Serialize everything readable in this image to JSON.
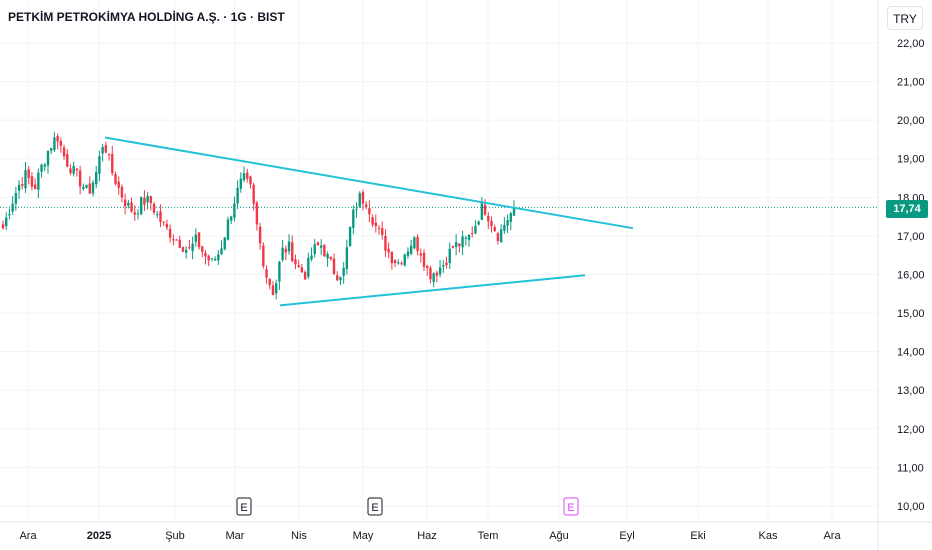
{
  "header": {
    "title": "PETKİM PETROKİMYA HOLDİNG A.Ş. · 1G · BIST",
    "currency": "TRY"
  },
  "price_tag": "17,74",
  "chart_data": {
    "type": "candlestick",
    "y_ticks": [
      "22,00",
      "21,00",
      "20,00",
      "19,00",
      "18,00",
      "17,00",
      "16,00",
      "15,00",
      "14,00",
      "13,00",
      "12,00",
      "11,00",
      "10,00"
    ],
    "y_tick_values": [
      22,
      21,
      20,
      19,
      18,
      17,
      16,
      15,
      14,
      13,
      12,
      11,
      10
    ],
    "x_ticks": [
      {
        "label": "Ara",
        "bold": false
      },
      {
        "label": "2025",
        "bold": true
      },
      {
        "label": "Şub",
        "bold": false
      },
      {
        "label": "Mar",
        "bold": false
      },
      {
        "label": "Nis",
        "bold": false
      },
      {
        "label": "May",
        "bold": false
      },
      {
        "label": "Haz",
        "bold": false
      },
      {
        "label": "Tem",
        "bold": false
      },
      {
        "label": "Ağu",
        "bold": false
      },
      {
        "label": "Eyl",
        "bold": false
      },
      {
        "label": "Eki",
        "bold": false
      },
      {
        "label": "Kas",
        "bold": false
      },
      {
        "label": "Ara",
        "bold": false
      }
    ],
    "last_price": 17.74,
    "up_color": "#089981",
    "down_color": "#f23645",
    "trendline_color": "#22c1d6",
    "earnings_markers": [
      {
        "label": "E",
        "color": "#131722"
      },
      {
        "label": "E",
        "color": "#131722"
      },
      {
        "label": "E",
        "color": "#e040fb"
      }
    ],
    "price_path": [
      17.2,
      17.8,
      18.3,
      18.6,
      18.2,
      18.8,
      19.3,
      19.6,
      19.0,
      18.7,
      18.4,
      18.1,
      18.6,
      19.5,
      18.7,
      18.2,
      17.8,
      17.6,
      17.9,
      17.9,
      17.5,
      17.2,
      17.0,
      16.8,
      16.6,
      16.9,
      16.5,
      16.3,
      16.6,
      17.3,
      18.0,
      18.5,
      18.2,
      17.0,
      16.0,
      15.5,
      16.6,
      16.7,
      16.2,
      16.0,
      16.6,
      16.8,
      16.4,
      16.0,
      16.1,
      17.4,
      18.0,
      17.9,
      17.3,
      16.9,
      16.5,
      16.3,
      16.6,
      16.9,
      16.6,
      16.0,
      16.1,
      16.3,
      16.7,
      16.8,
      16.9,
      17.3,
      17.8,
      17.4,
      17.0,
      17.4,
      17.7
    ],
    "trendlines": [
      {
        "name": "upper",
        "start": 19.55,
        "end": 17.2
      },
      {
        "name": "lower",
        "start": 15.2,
        "end": 15.98
      }
    ]
  }
}
